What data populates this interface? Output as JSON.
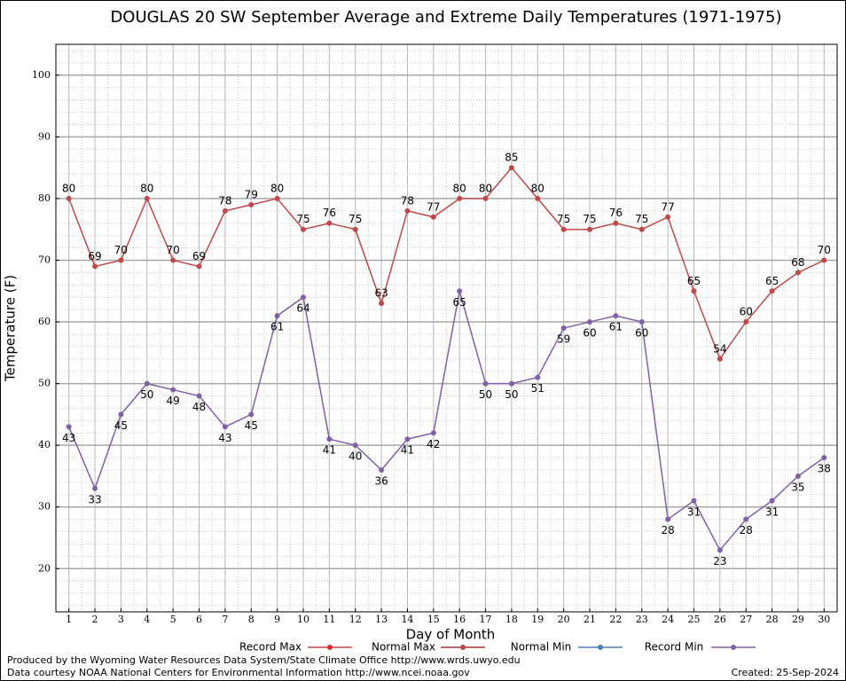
{
  "chart_data": {
    "type": "line",
    "title": "DOUGLAS 20 SW September Average and Extreme Daily Temperatures (1971-1975)",
    "x_label": "Day of Month",
    "y_label": "Temperature (F)",
    "x": [
      1,
      2,
      3,
      4,
      5,
      6,
      7,
      8,
      9,
      10,
      11,
      12,
      13,
      14,
      15,
      16,
      17,
      18,
      19,
      20,
      21,
      22,
      23,
      24,
      25,
      26,
      27,
      28,
      29,
      30
    ],
    "xlim": [
      0.5,
      30.5
    ],
    "xticks": [
      1,
      2,
      3,
      4,
      5,
      6,
      7,
      8,
      9,
      10,
      11,
      12,
      13,
      14,
      15,
      16,
      17,
      18,
      19,
      20,
      21,
      22,
      23,
      24,
      25,
      26,
      27,
      28,
      29,
      30
    ],
    "ylim": [
      13,
      105
    ],
    "yticks": [
      20,
      30,
      40,
      50,
      60,
      70,
      80,
      90,
      100
    ],
    "grid": true,
    "legend": "bottom",
    "series": [
      {
        "name": "Record Max",
        "color": "#c04848",
        "marker_color": "#e02828",
        "values": [
          80,
          69,
          70,
          80,
          70,
          69,
          78,
          79,
          80,
          75,
          76,
          75,
          63,
          78,
          77,
          80,
          80,
          85,
          80,
          75,
          75,
          76,
          75,
          77,
          65,
          54,
          60,
          65,
          68,
          70
        ]
      },
      {
        "name": "Normal Max",
        "color": "#a83838",
        "marker_color": "#b84848",
        "values": [
          null,
          null,
          null,
          null,
          null,
          null,
          null,
          null,
          null,
          null,
          null,
          null,
          null,
          null,
          null,
          null,
          null,
          null,
          null,
          null,
          null,
          null,
          null,
          null,
          null,
          null,
          null,
          null,
          null,
          null
        ]
      },
      {
        "name": "Normal Min",
        "color": "#4a80b0",
        "marker_color": "#4a80b0",
        "values": [
          null,
          null,
          null,
          null,
          null,
          null,
          null,
          null,
          null,
          null,
          null,
          null,
          null,
          null,
          null,
          null,
          null,
          null,
          null,
          null,
          null,
          null,
          null,
          null,
          null,
          null,
          null,
          null,
          null,
          null
        ]
      },
      {
        "name": "Record Min",
        "color": "#8060a8",
        "marker_color": "#8060a8",
        "values": [
          43,
          33,
          45,
          50,
          49,
          48,
          43,
          45,
          61,
          64,
          41,
          40,
          36,
          41,
          42,
          65,
          50,
          50,
          51,
          59,
          60,
          61,
          60,
          28,
          31,
          23,
          28,
          31,
          35,
          38
        ]
      }
    ],
    "footer_left": [
      "Produced by the Wyoming Water Resources Data System/State Climate Office http://www.wrds.uwyo.edu",
      "Data courtesy NOAA National Centers for Environmental Information http://www.ncei.noaa.gov"
    ],
    "footer_right": "Created:  25-Sep-2024"
  }
}
